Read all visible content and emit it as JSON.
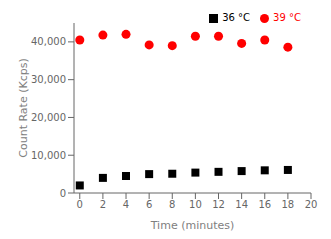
{
  "chart_data": {
    "type": "scatter",
    "xlabel": "Time (minutes)",
    "ylabel": "Count Rate (Kcps)",
    "x": [
      0,
      2,
      4,
      6,
      8,
      10,
      12,
      14,
      16,
      18
    ],
    "series": [
      {
        "name": "36 °C",
        "color": "#000000",
        "marker": "square",
        "values": [
          2000,
          4000,
          4500,
          5000,
          5100,
          5400,
          5600,
          5800,
          6000,
          6100
        ]
      },
      {
        "name": "39 °C",
        "color": "#ff0000",
        "marker": "circle",
        "values": [
          40500,
          41800,
          42000,
          39200,
          39000,
          41500,
          41500,
          39600,
          40500,
          38600
        ]
      }
    ],
    "xlim": [
      -0.5,
      20
    ],
    "ylim": [
      0,
      45000
    ],
    "xticks": [
      0,
      2,
      4,
      6,
      8,
      10,
      12,
      14,
      16,
      18,
      20
    ],
    "yticks": [
      0,
      {
        "value": 10000,
        "label": "10,000"
      },
      {
        "value": 20000,
        "label": "20,000"
      },
      {
        "value": 30000,
        "label": "30,000"
      },
      {
        "value": 40000,
        "label": "40,000"
      }
    ],
    "grid": false,
    "legend": "upper right"
  }
}
